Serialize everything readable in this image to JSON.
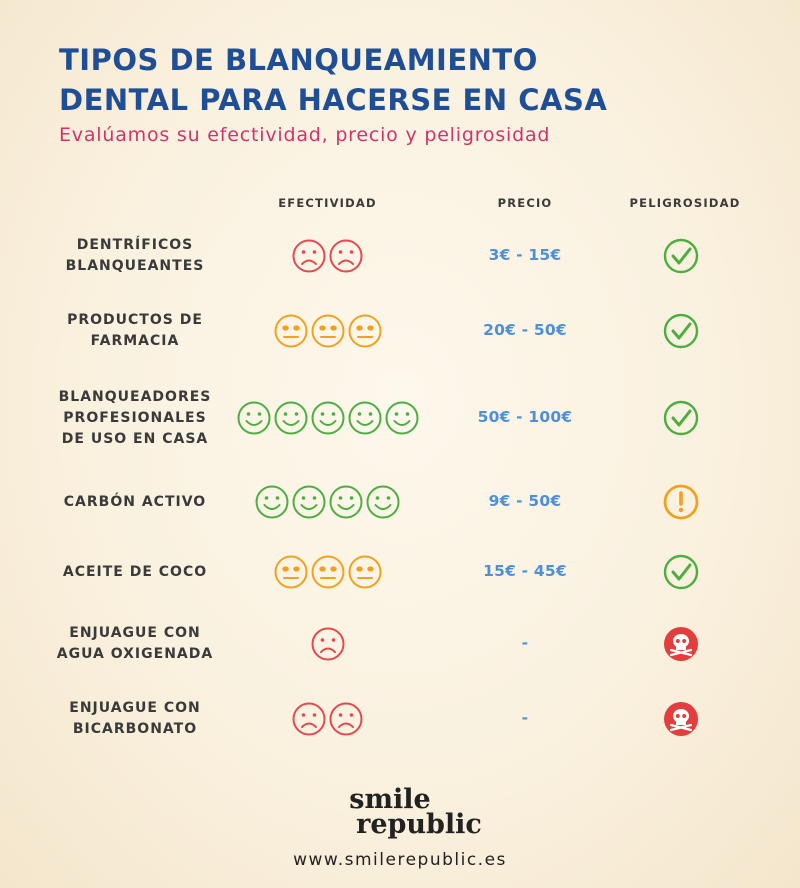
{
  "header": {
    "title_line1": "TIPOS DE BLANQUEAMIENTO",
    "title_line2": "DENTAL PARA HACERSE EN CASA",
    "subtitle": "Evalúamos su efectividad, precio y peligrosidad"
  },
  "columns": {
    "effectiveness": "EFECTIVIDAD",
    "price": "PRECIO",
    "danger": "PELIGROSIDAD"
  },
  "colors": {
    "title": "#1f4e96",
    "subtitle": "#d1346a",
    "price": "#4d8fd8",
    "sad": "#e5484d",
    "neutral": "#f3a01e",
    "happy": "#4cae3f",
    "safe": "#4cae3f",
    "warning": "#f3a01e",
    "dangerous": "#e33d3d"
  },
  "rows": [
    {
      "label_lines": [
        "DENTRÍFICOS",
        "BLANQUEANTES"
      ],
      "rating": {
        "face": "sad",
        "count": 2
      },
      "price": "3€ - 15€",
      "danger": "safe-check-icon"
    },
    {
      "label_lines": [
        "PRODUCTOS DE",
        "FARMACIA"
      ],
      "rating": {
        "face": "neutral",
        "count": 3
      },
      "price": "20€ - 50€",
      "danger": "safe-check-icon"
    },
    {
      "label_lines": [
        "BLANQUEADORES",
        "PROFESIONALES",
        "DE USO EN CASA"
      ],
      "rating": {
        "face": "happy",
        "count": 5
      },
      "price": "50€ - 100€",
      "danger": "safe-check-icon"
    },
    {
      "label_lines": [
        "CARBÓN ACTIVO"
      ],
      "rating": {
        "face": "happy",
        "count": 4
      },
      "price": "9€ - 50€",
      "danger": "warning-icon"
    },
    {
      "label_lines": [
        "ACEITE DE COCO"
      ],
      "rating": {
        "face": "neutral",
        "count": 3
      },
      "price": "15€ - 45€",
      "danger": "safe-check-icon"
    },
    {
      "label_lines": [
        "ENJUAGUE CON",
        "AGUA OXIGENADA"
      ],
      "rating": {
        "face": "sad",
        "count": 1
      },
      "price": "-",
      "danger": "skull-icon"
    },
    {
      "label_lines": [
        "ENJUAGUE CON",
        "BICARBONATO"
      ],
      "rating": {
        "face": "sad",
        "count": 2
      },
      "price": "-",
      "danger": "skull-icon"
    }
  ],
  "footer": {
    "logo_line1": "smile",
    "logo_line2": "republic",
    "url": "www.smilerepublic.es"
  }
}
